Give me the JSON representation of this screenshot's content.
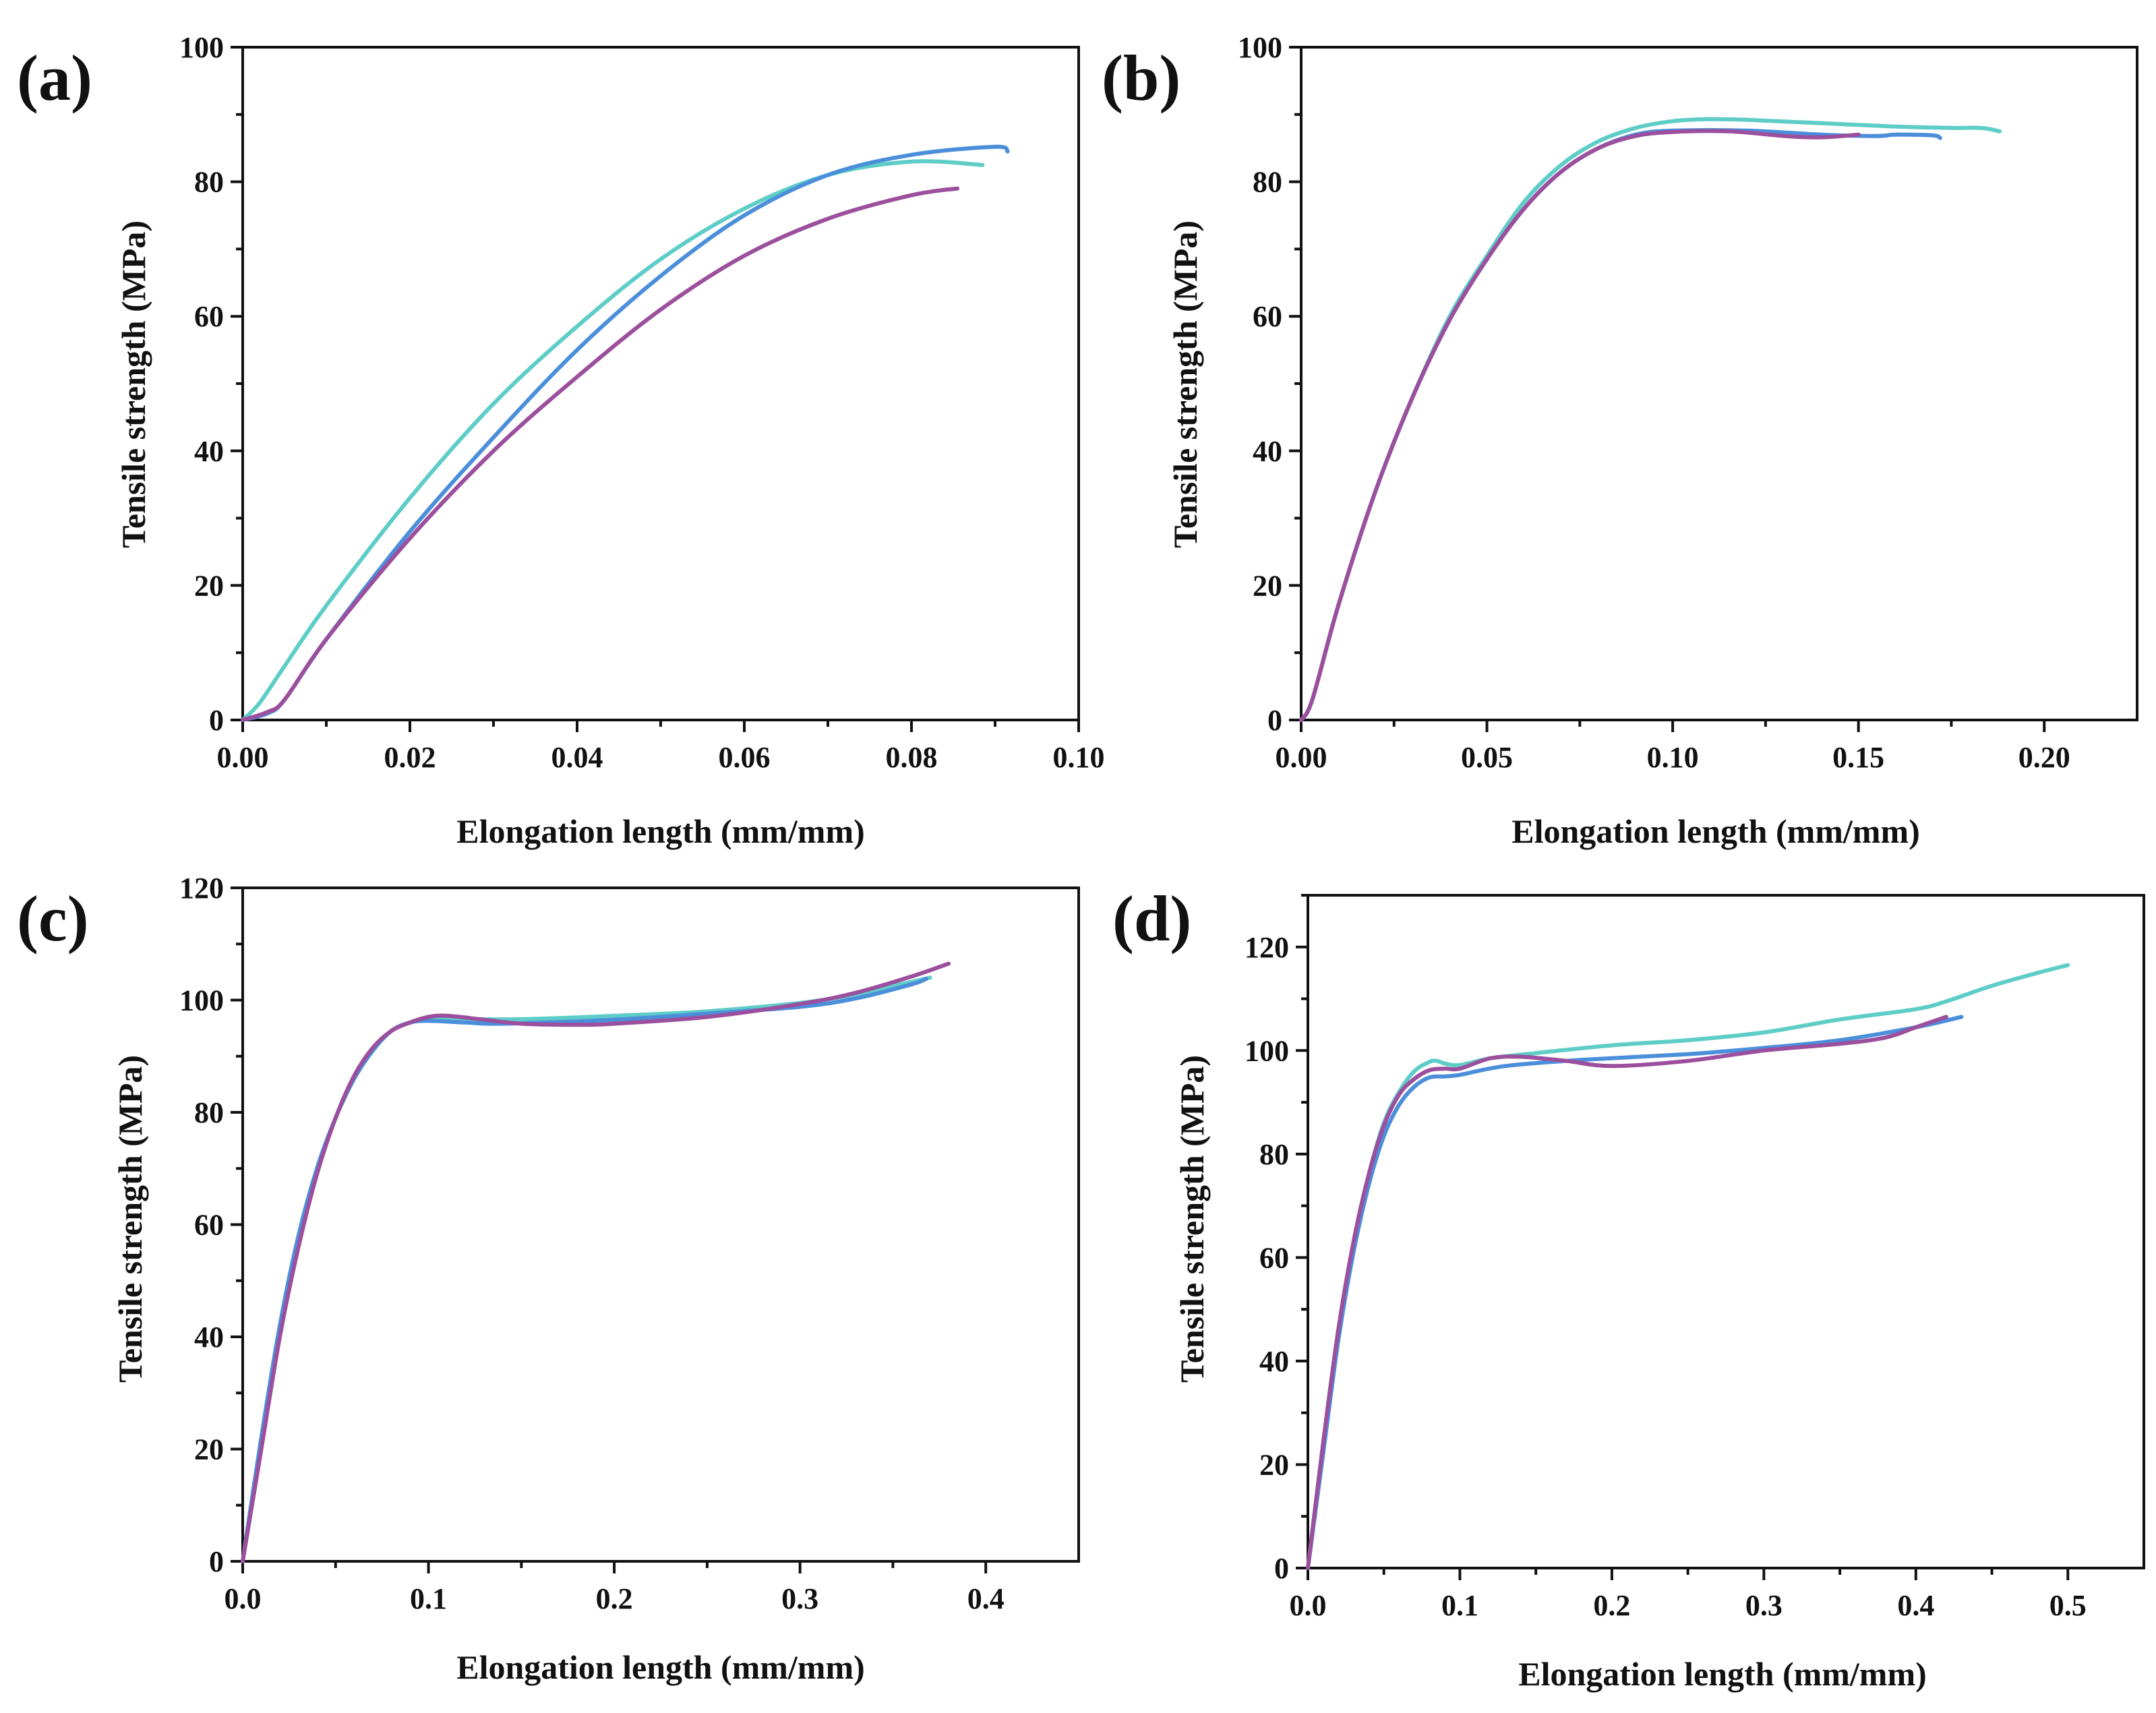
{
  "colors": {
    "cyan": "#5ECDC8",
    "blue": "#4B8FDB",
    "purple": "#9B4F9D"
  },
  "chart_data": [
    {
      "panel": "(a)",
      "type": "line",
      "xlabel": "Elongation length (mm/mm)",
      "ylabel": "Tensile strength (MPa)",
      "xlim": [
        0,
        0.1
      ],
      "ylim": [
        0,
        100
      ],
      "xticks": [
        0.0,
        0.02,
        0.04,
        0.06,
        0.08,
        0.1
      ],
      "xtick_labels": [
        "0.00",
        "0.02",
        "0.04",
        "0.06",
        "0.08",
        "0.10"
      ],
      "yticks": [
        0,
        20,
        40,
        60,
        80,
        100
      ],
      "ytick_labels": [
        "0",
        "20",
        "40",
        "60",
        "80",
        "100"
      ],
      "series": [
        {
          "name": "cyan",
          "color": "#5ECDC8",
          "points": [
            [
              0,
              0
            ],
            [
              0.002,
              2.5
            ],
            [
              0.005,
              8
            ],
            [
              0.01,
              17
            ],
            [
              0.02,
              33
            ],
            [
              0.03,
              47
            ],
            [
              0.04,
              58.5
            ],
            [
              0.05,
              68.5
            ],
            [
              0.06,
              76
            ],
            [
              0.07,
              81
            ],
            [
              0.08,
              83
            ],
            [
              0.0885,
              82.5
            ]
          ]
        },
        {
          "name": "blue",
          "color": "#4B8FDB",
          "points": [
            [
              0,
              0
            ],
            [
              0.003,
              1
            ],
            [
              0.005,
              3
            ],
            [
              0.01,
              12
            ],
            [
              0.02,
              28
            ],
            [
              0.03,
              42
            ],
            [
              0.04,
              55
            ],
            [
              0.05,
              66
            ],
            [
              0.06,
              75
            ],
            [
              0.07,
              81
            ],
            [
              0.08,
              84
            ],
            [
              0.09,
              85.2
            ],
            [
              0.0915,
              84.5
            ]
          ]
        },
        {
          "name": "purple",
          "color": "#9B4F9D",
          "points": [
            [
              0,
              0
            ],
            [
              0.003,
              1.2
            ],
            [
              0.005,
              3
            ],
            [
              0.01,
              12
            ],
            [
              0.02,
              27
            ],
            [
              0.03,
              40
            ],
            [
              0.04,
              51
            ],
            [
              0.05,
              61
            ],
            [
              0.06,
              69
            ],
            [
              0.07,
              74.5
            ],
            [
              0.08,
              78
            ],
            [
              0.0855,
              79
            ]
          ]
        }
      ]
    },
    {
      "panel": "(b)",
      "type": "line",
      "xlabel": "Elongation length (mm/mm)",
      "ylabel": "Tensile strength (MPa)",
      "xlim": [
        0,
        0.225
      ],
      "ylim": [
        0,
        100
      ],
      "xticks": [
        0.0,
        0.05,
        0.1,
        0.15,
        0.2
      ],
      "xtick_labels": [
        "0.00",
        "0.05",
        "0.10",
        "0.15",
        "0.20"
      ],
      "yticks": [
        0,
        20,
        40,
        60,
        80,
        100
      ],
      "ytick_labels": [
        "0",
        "20",
        "40",
        "60",
        "80",
        "100"
      ],
      "series": [
        {
          "name": "cyan",
          "color": "#5ECDC8",
          "points": [
            [
              0,
              0
            ],
            [
              0.003,
              3
            ],
            [
              0.01,
              17
            ],
            [
              0.02,
              34
            ],
            [
              0.03,
              48
            ],
            [
              0.04,
              60
            ],
            [
              0.05,
              69
            ],
            [
              0.06,
              77
            ],
            [
              0.07,
              82.5
            ],
            [
              0.08,
              86
            ],
            [
              0.09,
              88
            ],
            [
              0.1,
              89
            ],
            [
              0.11,
              89.3
            ],
            [
              0.12,
              89.2
            ],
            [
              0.14,
              88.7
            ],
            [
              0.16,
              88.2
            ],
            [
              0.175,
              88
            ],
            [
              0.183,
              88
            ],
            [
              0.188,
              87.5
            ]
          ]
        },
        {
          "name": "blue",
          "color": "#4B8FDB",
          "points": [
            [
              0,
              0
            ],
            [
              0.003,
              3
            ],
            [
              0.01,
              17
            ],
            [
              0.02,
              34
            ],
            [
              0.03,
              48
            ],
            [
              0.04,
              59.5
            ],
            [
              0.05,
              68.5
            ],
            [
              0.06,
              76
            ],
            [
              0.07,
              81.5
            ],
            [
              0.08,
              85
            ],
            [
              0.09,
              87
            ],
            [
              0.1,
              87.6
            ],
            [
              0.12,
              87.6
            ],
            [
              0.14,
              87
            ],
            [
              0.155,
              86.8
            ],
            [
              0.16,
              87
            ],
            [
              0.17,
              86.9
            ],
            [
              0.172,
              86.5
            ]
          ]
        },
        {
          "name": "purple",
          "color": "#9B4F9D",
          "points": [
            [
              0,
              0
            ],
            [
              0.003,
              3
            ],
            [
              0.01,
              17
            ],
            [
              0.02,
              34
            ],
            [
              0.03,
              48
            ],
            [
              0.04,
              59.5
            ],
            [
              0.05,
              68.5
            ],
            [
              0.06,
              76
            ],
            [
              0.07,
              81.5
            ],
            [
              0.08,
              85
            ],
            [
              0.09,
              86.8
            ],
            [
              0.1,
              87.4
            ],
            [
              0.115,
              87.5
            ],
            [
              0.13,
              86.8
            ],
            [
              0.14,
              86.6
            ],
            [
              0.15,
              87
            ]
          ]
        }
      ]
    },
    {
      "panel": "(c)",
      "type": "line",
      "xlabel": "Elongation length (mm/mm)",
      "ylabel": "Tensile strength (MPa)",
      "xlim": [
        0,
        0.45
      ],
      "ylim": [
        0,
        120
      ],
      "xticks": [
        0.0,
        0.1,
        0.2,
        0.3,
        0.4
      ],
      "xtick_labels": [
        "0.0",
        "0.1",
        "0.2",
        "0.3",
        "0.4"
      ],
      "yticks": [
        0,
        20,
        40,
        60,
        80,
        100,
        120
      ],
      "ytick_labels": [
        "0",
        "20",
        "40",
        "60",
        "80",
        "100",
        "120"
      ],
      "series": [
        {
          "name": "cyan",
          "color": "#5ECDC8",
          "points": [
            [
              0,
              0
            ],
            [
              0.01,
              22
            ],
            [
              0.02,
              42
            ],
            [
              0.03,
              58
            ],
            [
              0.04,
              70
            ],
            [
              0.05,
              79
            ],
            [
              0.06,
              86
            ],
            [
              0.07,
              91
            ],
            [
              0.08,
              94.5
            ],
            [
              0.09,
              96
            ],
            [
              0.1,
              96.7
            ],
            [
              0.12,
              96.6
            ],
            [
              0.15,
              96.6
            ],
            [
              0.2,
              97.2
            ],
            [
              0.25,
              98
            ],
            [
              0.3,
              99.5
            ],
            [
              0.33,
              101
            ],
            [
              0.35,
              102.5
            ],
            [
              0.37,
              104
            ]
          ]
        },
        {
          "name": "blue",
          "color": "#4B8FDB",
          "points": [
            [
              0,
              0
            ],
            [
              0.01,
              22
            ],
            [
              0.02,
              42
            ],
            [
              0.03,
              58
            ],
            [
              0.04,
              70
            ],
            [
              0.05,
              79
            ],
            [
              0.06,
              86
            ],
            [
              0.07,
              91
            ],
            [
              0.08,
              94.5
            ],
            [
              0.09,
              96
            ],
            [
              0.1,
              96.3
            ],
            [
              0.12,
              96
            ],
            [
              0.14,
              95.8
            ],
            [
              0.2,
              96.5
            ],
            [
              0.25,
              97.6
            ],
            [
              0.3,
              98.8
            ],
            [
              0.33,
              100.3
            ],
            [
              0.36,
              102.8
            ],
            [
              0.368,
              103.8
            ]
          ]
        },
        {
          "name": "purple",
          "color": "#9B4F9D",
          "points": [
            [
              0,
              0
            ],
            [
              0.01,
              20
            ],
            [
              0.02,
              40
            ],
            [
              0.03,
              56
            ],
            [
              0.04,
              69
            ],
            [
              0.05,
              79
            ],
            [
              0.06,
              86.5
            ],
            [
              0.07,
              91.5
            ],
            [
              0.08,
              94.5
            ],
            [
              0.09,
              96
            ],
            [
              0.1,
              97
            ],
            [
              0.11,
              97.2
            ],
            [
              0.13,
              96.5
            ],
            [
              0.15,
              95.8
            ],
            [
              0.18,
              95.6
            ],
            [
              0.2,
              95.8
            ],
            [
              0.25,
              97
            ],
            [
              0.3,
              99.3
            ],
            [
              0.33,
              101.3
            ],
            [
              0.36,
              104.2
            ],
            [
              0.38,
              106.5
            ]
          ]
        }
      ]
    },
    {
      "panel": "(d)",
      "type": "line",
      "xlabel": "Elongation length (mm/mm)",
      "ylabel": "Tensile strength (MPa)",
      "xlim": [
        0,
        0.55
      ],
      "ylim": [
        0,
        130
      ],
      "xticks": [
        0.0,
        0.1,
        0.2,
        0.3,
        0.4,
        0.5
      ],
      "xtick_labels": [
        "0.0",
        "0.1",
        "0.2",
        "0.3",
        "0.4",
        "0.5"
      ],
      "yticks": [
        0,
        20,
        40,
        60,
        80,
        100,
        120
      ],
      "ytick_labels": [
        "0",
        "20",
        "40",
        "60",
        "80",
        "100",
        "120"
      ],
      "series": [
        {
          "name": "cyan",
          "color": "#5ECDC8",
          "points": [
            [
              0,
              0
            ],
            [
              0.01,
              24
            ],
            [
              0.02,
              46
            ],
            [
              0.03,
              63
            ],
            [
              0.04,
              76
            ],
            [
              0.05,
              86
            ],
            [
              0.06,
              92
            ],
            [
              0.07,
              96
            ],
            [
              0.08,
              97.8
            ],
            [
              0.085,
              98
            ],
            [
              0.09,
              97.5
            ],
            [
              0.1,
              97.2
            ],
            [
              0.12,
              98.5
            ],
            [
              0.15,
              99.5
            ],
            [
              0.2,
              101
            ],
            [
              0.25,
              102
            ],
            [
              0.3,
              103.5
            ],
            [
              0.35,
              106
            ],
            [
              0.4,
              108
            ],
            [
              0.42,
              109.5
            ],
            [
              0.45,
              112.5
            ],
            [
              0.48,
              115
            ],
            [
              0.5,
              116.5
            ]
          ]
        },
        {
          "name": "blue",
          "color": "#4B8FDB",
          "points": [
            [
              0,
              0
            ],
            [
              0.01,
              22
            ],
            [
              0.02,
              44
            ],
            [
              0.03,
              61
            ],
            [
              0.04,
              74
            ],
            [
              0.05,
              83.5
            ],
            [
              0.06,
              89.5
            ],
            [
              0.07,
              93
            ],
            [
              0.08,
              94.8
            ],
            [
              0.09,
              95
            ],
            [
              0.1,
              95.3
            ],
            [
              0.13,
              97
            ],
            [
              0.18,
              98.2
            ],
            [
              0.25,
              99.3
            ],
            [
              0.3,
              100.5
            ],
            [
              0.35,
              102
            ],
            [
              0.4,
              104.5
            ],
            [
              0.43,
              106.5
            ]
          ]
        },
        {
          "name": "purple",
          "color": "#9B4F9D",
          "points": [
            [
              0,
              0
            ],
            [
              0.01,
              24
            ],
            [
              0.02,
              46
            ],
            [
              0.03,
              63
            ],
            [
              0.04,
              76
            ],
            [
              0.05,
              85.5
            ],
            [
              0.06,
              91.5
            ],
            [
              0.07,
              94.5
            ],
            [
              0.08,
              96.2
            ],
            [
              0.09,
              96.5
            ],
            [
              0.1,
              96.5
            ],
            [
              0.12,
              98.5
            ],
            [
              0.14,
              98.8
            ],
            [
              0.17,
              98
            ],
            [
              0.2,
              97
            ],
            [
              0.25,
              98
            ],
            [
              0.3,
              100
            ],
            [
              0.35,
              101.3
            ],
            [
              0.38,
              102.5
            ],
            [
              0.4,
              104.5
            ],
            [
              0.42,
              106.5
            ]
          ]
        }
      ]
    }
  ]
}
